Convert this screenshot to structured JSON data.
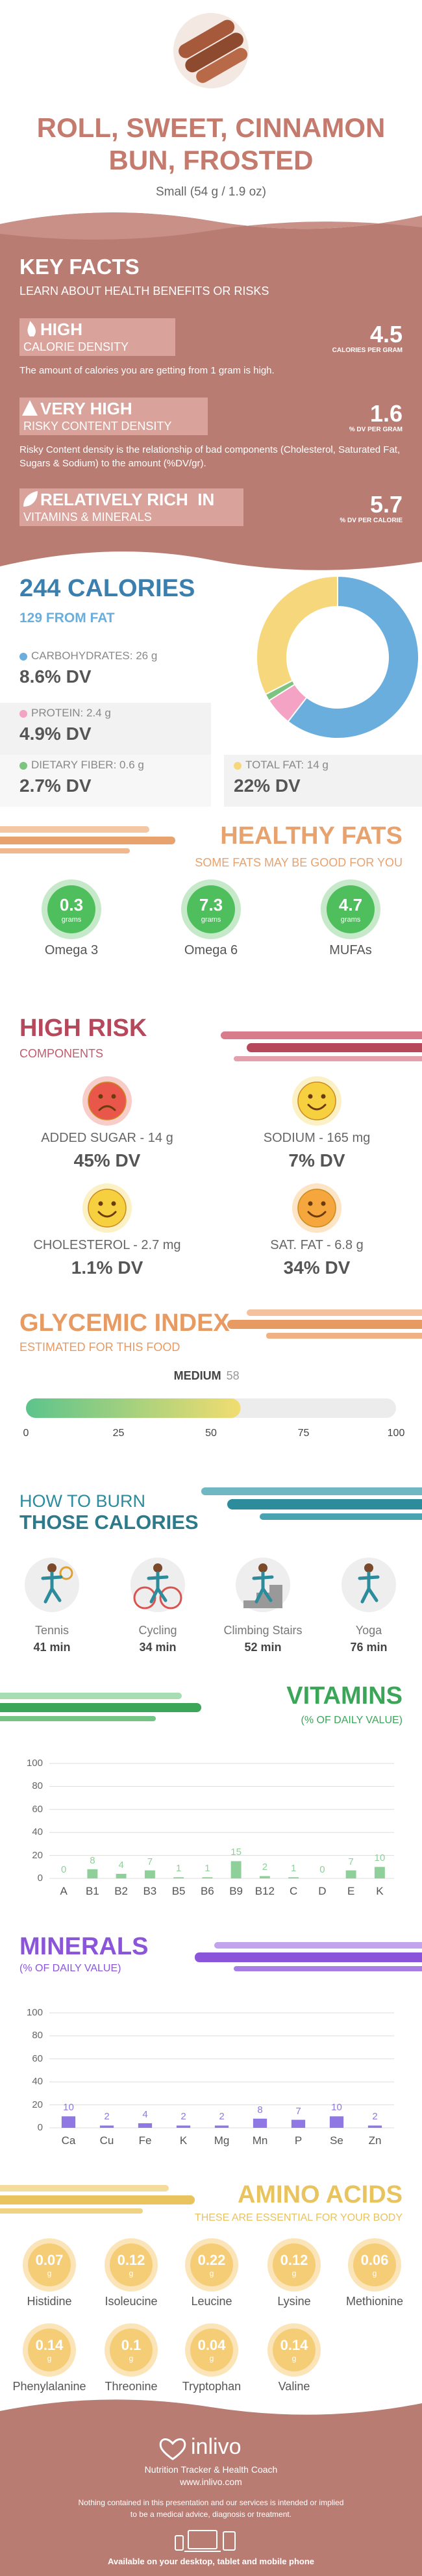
{
  "header": {
    "title": "ROLL, SWEET, CINNAMON BUN, FROSTED",
    "serving": "Small (54 g / 1.9 oz)"
  },
  "key_facts": {
    "title": "KEY FACTS",
    "subtitle": "LEARN ABOUT HEALTH BENEFITS OR RISKS",
    "facts": [
      {
        "level": "HIGH",
        "name": "CALORIE DENSITY",
        "value": 4.5,
        "unit": "CALORIES PER GRAM",
        "description": "The amount of calories you are getting from 1 gram is high."
      },
      {
        "level": "VERY HIGH",
        "name": "RISKY CONTENT DENSITY",
        "value": 1.6,
        "unit": "% DV PER GRAM",
        "description": "Risky Content density is the relationship of bad components (Cholesterol, Saturated Fat, Sugars & Sodium) to the amount (%DV/gr)."
      },
      {
        "level": "RELATIVELY RICH  IN",
        "name": "VITAMINS & MINERALS",
        "value": 5.7,
        "unit": "% DV PER CALORIE"
      }
    ]
  },
  "calories": {
    "title": "244 CALORIES",
    "subtitle": "129 FROM FAT",
    "macros": [
      {
        "label": "CARBOHYDRATES: 26 g",
        "value": 26,
        "dv": "8.6% DV",
        "color": "#6aaede"
      },
      {
        "label": "PROTEIN: 2.4 g",
        "value": 2.4,
        "dv": "4.9% DV",
        "color": "#f4a3c4"
      },
      {
        "label": "DIETARY FIBER: 0.6 g",
        "value": 0.6,
        "dv": "2.7% DV",
        "color": "#7cc47f"
      },
      {
        "label": "TOTAL FAT: 14 g",
        "value": 14,
        "dv": "22% DV",
        "color": "#f6d77c"
      }
    ]
  },
  "healthy_fats": {
    "title": "HEALTHY FATS",
    "subtitle": "SOME FATS MAY BE GOOD FOR YOU",
    "unit": "grams",
    "items": [
      {
        "value": 0.3,
        "name": "Omega 3"
      },
      {
        "value": 7.3,
        "name": "Omega 6"
      },
      {
        "value": 4.7,
        "name": "MUFAs"
      }
    ]
  },
  "high_risk": {
    "title": "HIGH RISK",
    "subtitle": "COMPONENTS",
    "items": [
      {
        "label": "ADDED SUGAR - 14 g",
        "dv": "45% DV",
        "color": "#e9574a",
        "mood": "sad"
      },
      {
        "label": "SODIUM - 165 mg",
        "dv": "7% DV",
        "color": "#f6d03f",
        "mood": "happy"
      },
      {
        "label": "CHOLESTEROL - 2.7 mg",
        "dv": "1.1% DV",
        "color": "#f6d03f",
        "mood": "happy"
      },
      {
        "label": "SAT. FAT - 6.8 g",
        "dv": "34% DV",
        "color": "#f5a73d",
        "mood": "happy"
      }
    ]
  },
  "glycemic": {
    "title": "GLYCEMIC INDEX",
    "subtitle": "ESTIMATED FOR THIS FOOD",
    "rating": "MEDIUM",
    "value": 58,
    "lim": [
      0,
      100
    ],
    "ticks": [
      0,
      25,
      50,
      75,
      100
    ]
  },
  "burn": {
    "title": "HOW TO BURN",
    "title2": "THOSE CALORIES",
    "activities": [
      {
        "name": "Tennis",
        "time": "41 min"
      },
      {
        "name": "Cycling",
        "time": "34 min"
      },
      {
        "name": "Climbing Stairs",
        "time": "52 min"
      },
      {
        "name": "Yoga",
        "time": "76 min"
      }
    ]
  },
  "chart_data": [
    {
      "type": "bar",
      "title": "VITAMINS",
      "subtitle": "(% OF DAILY VALUE)",
      "categories": [
        "A",
        "B1",
        "B2",
        "B3",
        "B5",
        "B6",
        "B9",
        "B12",
        "C",
        "D",
        "E",
        "K"
      ],
      "values": [
        0,
        8,
        4,
        7,
        1,
        1,
        15,
        2,
        1,
        0,
        7,
        10
      ],
      "color": "#8fd09a",
      "ylim": [
        0,
        100
      ],
      "yticks": [
        0,
        20,
        40,
        60,
        80,
        100
      ],
      "grid": true
    },
    {
      "type": "bar",
      "title": "MINERALS",
      "subtitle": "(% OF DAILY VALUE)",
      "categories": [
        "Ca",
        "Cu",
        "Fe",
        "K",
        "Mg",
        "Mn",
        "P",
        "Se",
        "Zn"
      ],
      "values": [
        10,
        2,
        4,
        2,
        2,
        8,
        7,
        10,
        2
      ],
      "color": "#8f78e3",
      "ylim": [
        0,
        100
      ],
      "yticks": [
        0,
        20,
        40,
        60,
        80,
        100
      ],
      "grid": true
    }
  ],
  "amino_acids": {
    "title": "AMINO ACIDS",
    "subtitle": "THESE ARE ESSENTIAL FOR YOUR BODY",
    "unit": "g",
    "items": [
      {
        "name": "Histidine",
        "value": 0.07
      },
      {
        "name": "Isoleucine",
        "value": 0.12
      },
      {
        "name": "Leucine",
        "value": 0.22
      },
      {
        "name": "Lysine",
        "value": 0.12
      },
      {
        "name": "Methionine",
        "value": 0.06
      },
      {
        "name": "Phenylalanine",
        "value": 0.14
      },
      {
        "name": "Threonine",
        "value": 0.1
      },
      {
        "name": "Tryptophan",
        "value": 0.04
      },
      {
        "name": "Valine",
        "value": 0.14
      }
    ]
  },
  "footer": {
    "brand": "inlivo",
    "tagline": "Nutrition Tracker & Health Coach",
    "url": "www.inlivo.com",
    "disclaimer": "Nothing contained in this presentation and our services is intended or implied to be a medical advice, diagnosis or treatment.",
    "availability": "Available on your desktop, tablet and mobile phone"
  }
}
